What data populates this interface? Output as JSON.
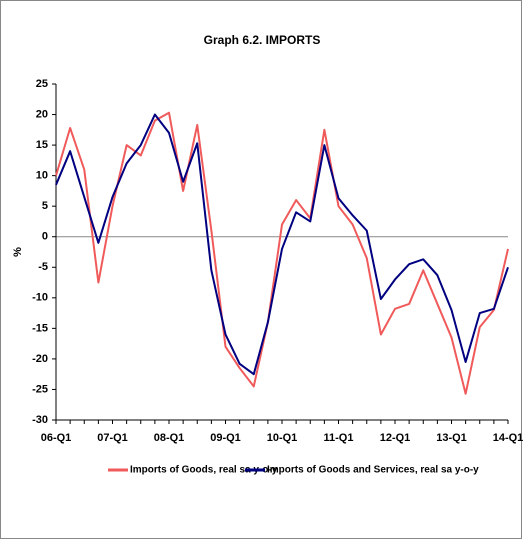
{
  "chart_data": {
    "type": "line",
    "title": "Graph 6.2. IMPORTS",
    "y_label": "%",
    "categories": [
      "06-Q1",
      null,
      null,
      null,
      "07-Q1",
      null,
      null,
      null,
      "08-Q1",
      null,
      null,
      null,
      "09-Q1",
      null,
      null,
      null,
      "10-Q1",
      null,
      null,
      null,
      "11-Q1",
      null,
      null,
      null,
      "12-Q1",
      null,
      null,
      null,
      "13-Q1",
      null,
      null,
      null,
      "14-Q1"
    ],
    "series": [
      {
        "name": "Imports of Goods, real sa y-o-y",
        "color": "#f05a5a",
        "values": [
          10,
          17.8,
          11,
          -7.5,
          5,
          15,
          13.3,
          19,
          20.3,
          7.5,
          18.3,
          1,
          -18,
          -21.5,
          -24.5,
          -14,
          2,
          6,
          3,
          17.5,
          5,
          2,
          -3.5,
          -16,
          -11.8,
          -11,
          -5.5,
          -11,
          -16.5,
          -25.7,
          -14.8,
          -12,
          -2
        ]
      },
      {
        "name": "Imports of Goods and Services, real sa y-o-y",
        "color": "#000080",
        "values": [
          8.5,
          14,
          6.5,
          -1,
          6.5,
          12,
          15,
          20,
          17,
          9,
          15.3,
          -5.5,
          -16,
          -20.8,
          -22.5,
          -14,
          -2,
          4,
          2.5,
          15,
          6.3,
          3.5,
          1,
          -10.2,
          -7,
          -4.5,
          -3.7,
          -6.3,
          -12,
          -20.5,
          -12.5,
          -11.8,
          -5
        ]
      }
    ],
    "ylim": [
      -30,
      25
    ],
    "yticks": [
      25,
      20,
      15,
      10,
      5,
      0,
      -5,
      -10,
      -15,
      -20,
      -25,
      -30
    ],
    "grid": false
  }
}
